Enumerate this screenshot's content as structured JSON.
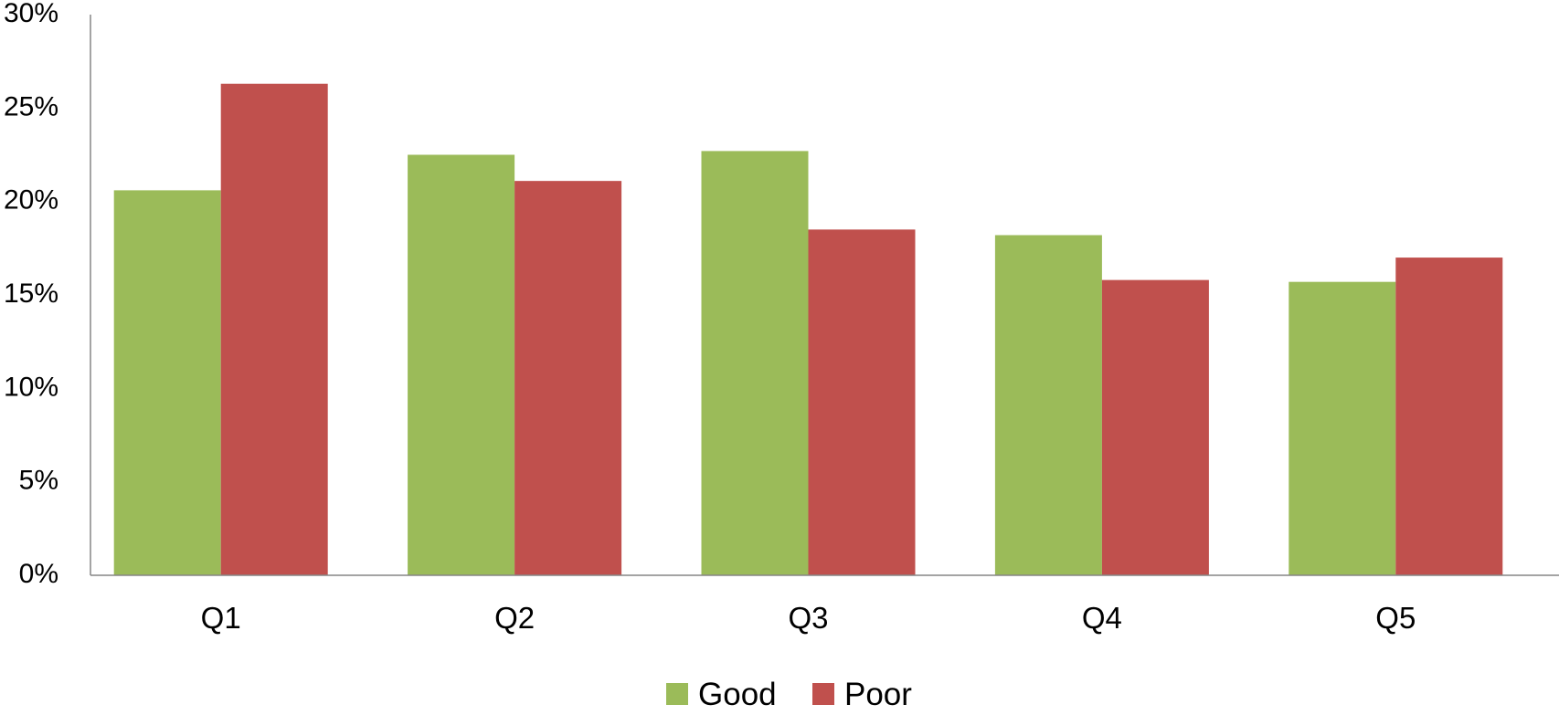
{
  "chart_data": {
    "type": "bar",
    "categories": [
      "Q1",
      "Q2",
      "Q3",
      "Q4",
      "Q5"
    ],
    "series": [
      {
        "name": "Good",
        "values": [
          20.6,
          22.5,
          22.7,
          18.2,
          15.7
        ],
        "color": "#9BBB59"
      },
      {
        "name": "Poor",
        "values": [
          26.3,
          21.1,
          18.5,
          15.8,
          17.0
        ],
        "color": "#C0504D"
      }
    ],
    "title": "",
    "xlabel": "",
    "ylabel": "",
    "ylim": [
      0,
      30
    ],
    "y_ticks": [
      0,
      5,
      10,
      15,
      20,
      25,
      30
    ],
    "y_tick_labels": [
      "0%",
      "5%",
      "10%",
      "15%",
      "20%",
      "25%",
      "30%"
    ],
    "value_format": "percent",
    "grid": false,
    "legend_position": "bottom"
  }
}
